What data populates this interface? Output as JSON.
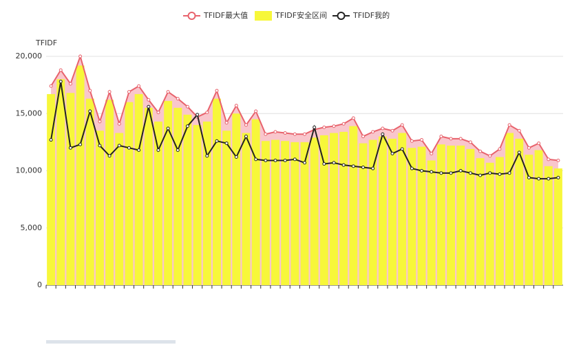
{
  "chart_data": {
    "type": "bar",
    "y_label": "TFIDF",
    "categories": [
      null,
      null,
      null,
      null,
      null,
      null,
      null,
      null,
      null,
      null,
      null,
      null,
      null,
      null,
      null,
      null,
      null,
      null,
      null,
      null,
      null,
      null,
      null,
      null,
      null,
      null,
      null,
      null,
      null,
      null,
      null,
      null,
      null,
      null,
      null,
      null,
      null,
      null,
      null,
      null,
      null,
      null,
      null,
      null,
      null,
      null,
      null,
      null,
      null,
      null,
      null,
      null,
      null
    ],
    "series": [
      {
        "name": "TFIDF最大值",
        "type": "line",
        "area": true,
        "color": "#e8626c",
        "area_color": "#f9c6cc",
        "values": [
          17400,
          18800,
          17600,
          20000,
          17000,
          14300,
          16900,
          14100,
          16900,
          17400,
          16200,
          15100,
          16900,
          16300,
          15600,
          14700,
          15100,
          17000,
          14200,
          15700,
          14000,
          15200,
          13200,
          13400,
          13300,
          13200,
          13200,
          13600,
          13800,
          13900,
          14100,
          14600,
          13000,
          13400,
          13700,
          13500,
          14000,
          12600,
          12700,
          11500,
          13000,
          12800,
          12800,
          12500,
          11700,
          11300,
          11900,
          14000,
          13500,
          12000,
          12400,
          11000,
          10900
        ]
      },
      {
        "name": "TFIDF安全区间",
        "type": "bar",
        "color": "#f7f73a",
        "values": [
          16700,
          18000,
          16800,
          19200,
          16300,
          13500,
          16200,
          13300,
          16000,
          16700,
          15500,
          14300,
          16100,
          15500,
          14900,
          14000,
          14300,
          16300,
          13500,
          15000,
          13300,
          14500,
          12600,
          12700,
          12600,
          12500,
          12500,
          12900,
          13100,
          13300,
          13400,
          13900,
          12400,
          12700,
          13000,
          12800,
          13300,
          12000,
          12100,
          10900,
          12300,
          12200,
          12200,
          11900,
          11100,
          10700,
          11200,
          13300,
          12800,
          11400,
          11800,
          10400,
          10200
        ]
      },
      {
        "name": "TFIDF我的",
        "type": "line",
        "color": "#222222",
        "values": [
          12700,
          17800,
          12000,
          12300,
          15200,
          12200,
          11300,
          12200,
          12000,
          11800,
          15600,
          11800,
          13700,
          11800,
          13900,
          14900,
          11300,
          12600,
          12400,
          11200,
          13000,
          11000,
          10900,
          10900,
          10900,
          11000,
          10700,
          13800,
          10600,
          10700,
          10500,
          10400,
          10300,
          10200,
          13200,
          11500,
          11900,
          10200,
          10000,
          9900,
          9800,
          9800,
          10000,
          9800,
          9600,
          9800,
          9700,
          9800,
          11600,
          9400,
          9300,
          9300,
          9400
        ]
      }
    ],
    "ylim": [
      0,
      20000
    ],
    "yticks": [
      0,
      {
        "value": 5000,
        "label": "5,000"
      },
      {
        "value": 10000,
        "label": "10,000"
      },
      {
        "value": 15000,
        "label": "15,000"
      },
      {
        "value": 20000,
        "label": "20,000"
      }
    ],
    "grid": true,
    "legend": "top"
  }
}
